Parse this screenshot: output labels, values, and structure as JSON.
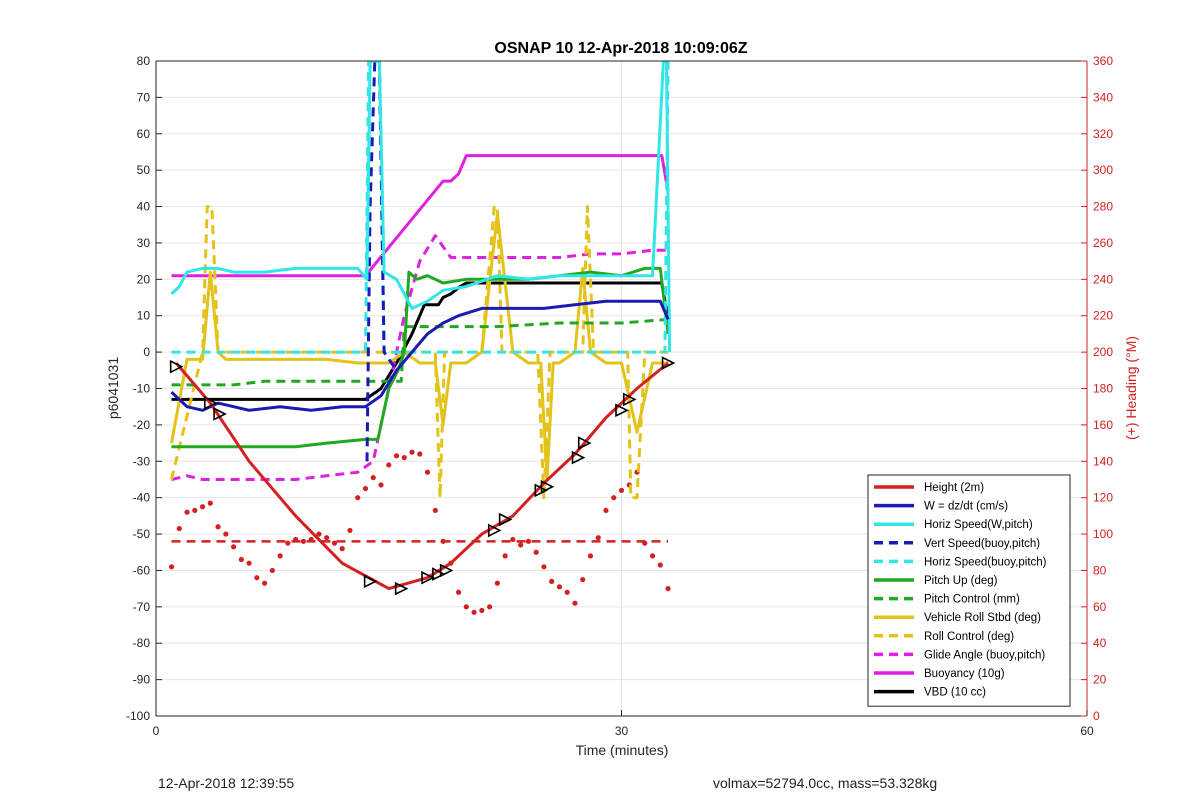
{
  "chart_data": {
    "type": "line",
    "title": "OSNAP 10 12-Apr-2018 10:09:06Z",
    "xlabel": "Time (minutes)",
    "ylabel": "p6041031",
    "y2label": "(+) Heading (°M)",
    "xlim": [
      0,
      60
    ],
    "ylim": [
      -100,
      80
    ],
    "y2lim": [
      0,
      360
    ],
    "xticks": [
      "0",
      "30",
      "60"
    ],
    "yticks": [
      "80",
      "70",
      "60",
      "50",
      "40",
      "30",
      "20",
      "10",
      "0",
      "-10",
      "-20",
      "-30",
      "-40",
      "-50",
      "-60",
      "-70",
      "-80",
      "-90",
      "-100"
    ],
    "y2ticks": [
      "360",
      "340",
      "320",
      "300",
      "280",
      "260",
      "240",
      "220",
      "200",
      "180",
      "160",
      "140",
      "120",
      "100",
      "80",
      "60",
      "40",
      "20",
      "0"
    ],
    "grid": true,
    "legend_position": "bottom-right",
    "colors": {
      "red": "#d42020",
      "blue": "#1a1ab4",
      "cyan": "#30e6e6",
      "green": "#21a821",
      "yellow": "#e3c21a",
      "magenta": "#e020e0",
      "black": "#000000"
    },
    "series": [
      {
        "name": "Height (2m)",
        "color": "#d42020",
        "style": "solid",
        "x": [
          1.3,
          3.5,
          6,
          9,
          12,
          15,
          17.5,
          19,
          21,
          23,
          25,
          27,
          29,
          31,
          33
        ],
        "y": [
          -3,
          -14,
          -30,
          -45,
          -58,
          -65,
          -62,
          -58,
          -50,
          -45,
          -36,
          -28,
          -18,
          -10,
          -3
        ]
      },
      {
        "name": "W = dz/dt (cm/s)",
        "color": "#1a1ab4",
        "style": "solid",
        "x": [
          1,
          2,
          3,
          4,
          6,
          8,
          10,
          12,
          13.5,
          14.5,
          15.5,
          16.5,
          17.5,
          18.5,
          19.5,
          21,
          23,
          25,
          27,
          29,
          31,
          32.5,
          33
        ],
        "y": [
          -11,
          -15,
          -16,
          -14,
          -16,
          -15,
          -16,
          -15,
          -15,
          -12,
          -5,
          0,
          5,
          8,
          10,
          12,
          12,
          12,
          13,
          14,
          14,
          14,
          9
        ]
      },
      {
        "name": "Horiz Speed(W,pitch)",
        "color": "#30e6e6",
        "style": "solid",
        "x": [
          1,
          1.5,
          2,
          3,
          4,
          5,
          7,
          9,
          11,
          13,
          13.6,
          13.8,
          14.1,
          14.4,
          14.7,
          15.5,
          16.5,
          17.5,
          18.5,
          20,
          22,
          24,
          26,
          28,
          30,
          32,
          32.7,
          32.9,
          33.1
        ],
        "y": [
          16,
          18,
          22,
          23,
          23,
          22,
          22,
          23,
          23,
          23,
          20,
          80,
          80,
          80,
          22,
          20,
          12,
          14,
          17,
          18,
          21,
          20,
          21,
          21,
          21,
          21,
          80,
          80,
          0
        ]
      },
      {
        "name": "Vert Speed(buoy,pitch)",
        "color": "#1a1ab4",
        "style": "dashed",
        "x": [
          13.6,
          13.8,
          14.1,
          14.4,
          14.7,
          15.5
        ],
        "y": [
          -30,
          40,
          80,
          80,
          0,
          -5
        ]
      },
      {
        "name": "Horiz Speed(buoy,pitch)",
        "color": "#30e6e6",
        "style": "dashed",
        "x": [
          1,
          5,
          10,
          13.5,
          13.7,
          14,
          14.4,
          14.7,
          15.5,
          20,
          25,
          32.8,
          33,
          33.1
        ],
        "y": [
          0,
          0,
          0,
          0,
          80,
          80,
          80,
          0,
          0,
          0,
          0,
          0,
          80,
          80
        ]
      },
      {
        "name": "Pitch Up (deg)",
        "color": "#21a821",
        "style": "solid",
        "x": [
          1,
          3,
          5,
          7,
          9,
          11,
          13.5,
          14.3,
          15,
          15.6,
          16,
          16.3,
          16.8,
          17.5,
          18.5,
          20,
          22,
          24,
          26,
          28,
          30,
          31.5,
          32.5,
          33
        ],
        "y": [
          -26,
          -26,
          -26,
          -26,
          -26,
          -25,
          -24,
          -24,
          -10,
          -5,
          0,
          22,
          20,
          21,
          19,
          20,
          20,
          20,
          21,
          22,
          21,
          23,
          23,
          5
        ]
      },
      {
        "name": "Pitch Control (mm)",
        "color": "#21a821",
        "style": "dashed",
        "x": [
          1,
          3,
          5,
          7,
          9,
          11,
          13,
          14.5,
          15.8,
          16,
          16.5,
          18,
          22,
          26,
          30,
          33
        ],
        "y": [
          -9,
          -9,
          -9,
          -8,
          -8,
          -8,
          -8,
          -8,
          -8,
          7,
          7,
          7,
          7,
          8,
          8,
          9
        ]
      },
      {
        "name": "Vehicle Roll Stbd (deg)",
        "color": "#e3c21a",
        "style": "solid",
        "x": [
          1,
          2,
          3,
          3.5,
          4,
          4.5,
          5,
          7,
          9,
          11,
          13,
          14,
          15,
          16,
          17,
          18,
          18.5,
          19,
          20,
          21,
          22,
          23,
          24,
          24.8,
          25.2,
          25.6,
          26,
          27,
          27.5,
          28,
          29,
          30,
          31,
          32,
          33
        ],
        "y": [
          -25,
          -2,
          -2,
          22,
          0,
          -2,
          -2,
          -2,
          -2,
          -2,
          -3,
          -3,
          -3,
          0,
          -3,
          -3,
          -20,
          -3,
          -3,
          0,
          38,
          0,
          -3,
          -3,
          -35,
          -3,
          -3,
          0,
          23,
          0,
          -3,
          -3,
          -22,
          -3,
          -3
        ]
      },
      {
        "name": "Roll Control (deg)",
        "color": "#e3c21a",
        "style": "dashed",
        "x": [
          1,
          3,
          3.3,
          3.6,
          4,
          5,
          10,
          15,
          17.5,
          18,
          18.3,
          18.6,
          19,
          21,
          21.8,
          22,
          22.3,
          23,
          24.6,
          25,
          25.4,
          26,
          27.5,
          27.8,
          28.2,
          29,
          30.4,
          30.6,
          31,
          31.5,
          33
        ],
        "y": [
          -35,
          0,
          40,
          40,
          0,
          0,
          0,
          0,
          0,
          0,
          -40,
          0,
          0,
          0,
          40,
          40,
          0,
          0,
          0,
          -40,
          0,
          0,
          0,
          40,
          0,
          0,
          0,
          -40,
          -40,
          0,
          0
        ]
      },
      {
        "name": "Glide Angle (buoy,pitch)",
        "color": "#e020e0",
        "style": "dashed",
        "x": [
          1,
          2,
          3,
          5,
          7,
          9,
          11,
          13,
          14,
          15,
          16,
          17,
          18,
          19,
          20,
          22,
          24,
          26,
          28,
          30,
          32,
          33
        ],
        "y": [
          -35,
          -34,
          -35,
          -35,
          -35,
          -35,
          -34,
          -33,
          -30,
          -10,
          10,
          25,
          32,
          26,
          26,
          26,
          26,
          26,
          27,
          27,
          28,
          28
        ]
      },
      {
        "name": "Buoyancy (10g)",
        "color": "#e020e0",
        "style": "solid",
        "x": [
          1,
          13.5,
          18.5,
          19,
          19.5,
          20,
          25,
          32.6,
          33
        ],
        "y": [
          21,
          21,
          47,
          47,
          49,
          54,
          54,
          54,
          44
        ]
      },
      {
        "name": "VBD (10 cc)",
        "color": "#000000",
        "style": "solid",
        "x": [
          1,
          5,
          10,
          13.5,
          14.5,
          15.5,
          16.5,
          17.3,
          17.6,
          18.2,
          18.5,
          19,
          19.6,
          20,
          25,
          30,
          32.6,
          33
        ],
        "y": [
          -13,
          -13,
          -13,
          -13,
          -10,
          -3,
          5,
          13,
          13,
          13,
          15,
          16,
          18,
          19,
          19,
          19,
          19,
          9
        ]
      }
    ],
    "heading_series": {
      "name": "Heading",
      "axis": "right",
      "color": "#d42020",
      "style": "dotted",
      "x": [
        1,
        1.5,
        2,
        2.5,
        3,
        3.5,
        4,
        4.5,
        5,
        5.5,
        6,
        6.5,
        7,
        7.5,
        8,
        8.5,
        9,
        9.5,
        10,
        10.5,
        11,
        11.5,
        12,
        12.5,
        13,
        13.5,
        14,
        14.5,
        15,
        15.5,
        16,
        16.5,
        17,
        17.5,
        18,
        18.5,
        19,
        19.5,
        20,
        20.5,
        21,
        21.5,
        22,
        22.5,
        23,
        23.5,
        24,
        24.5,
        25,
        25.5,
        26,
        26.5,
        27,
        27.5,
        28,
        28.5,
        29,
        29.5,
        30,
        30.5,
        31,
        31.5,
        32,
        32.5,
        33
      ],
      "y": [
        82,
        103,
        112,
        113,
        115,
        117,
        104,
        100,
        93,
        86,
        84,
        76,
        73,
        80,
        88,
        95,
        97,
        96,
        97,
        100,
        98,
        95,
        92,
        102,
        120,
        125,
        131,
        127,
        138,
        143,
        142,
        145,
        144,
        134,
        113,
        96,
        84,
        68,
        60,
        57,
        58,
        60,
        73,
        88,
        97,
        94,
        96,
        90,
        82,
        74,
        71,
        68,
        62,
        75,
        88,
        98,
        113,
        120,
        124,
        127,
        134,
        95,
        88,
        83,
        70
      ]
    },
    "heading_threshold": {
      "axis": "right",
      "value": 96,
      "color": "#d42020",
      "style": "dashed",
      "x": [
        1,
        33
      ]
    },
    "markers": {
      "shape": "triangle",
      "x": [
        1.3,
        3.5,
        4.1,
        13.8,
        15.8,
        17.5,
        18.2,
        18.7,
        21.8,
        22.5,
        24.8,
        25.2,
        27.2,
        27.6,
        30,
        30.5,
        33
      ],
      "y": [
        -4,
        -14,
        -17,
        -63,
        -65,
        -62,
        -61,
        -60,
        -49,
        -46,
        -38,
        -37,
        -29,
        -25,
        -16,
        -13,
        -3
      ]
    }
  },
  "footer": {
    "left": "12-Apr-2018 12:39:55",
    "right": "volmax=52794.0cc, mass=53.328kg"
  }
}
